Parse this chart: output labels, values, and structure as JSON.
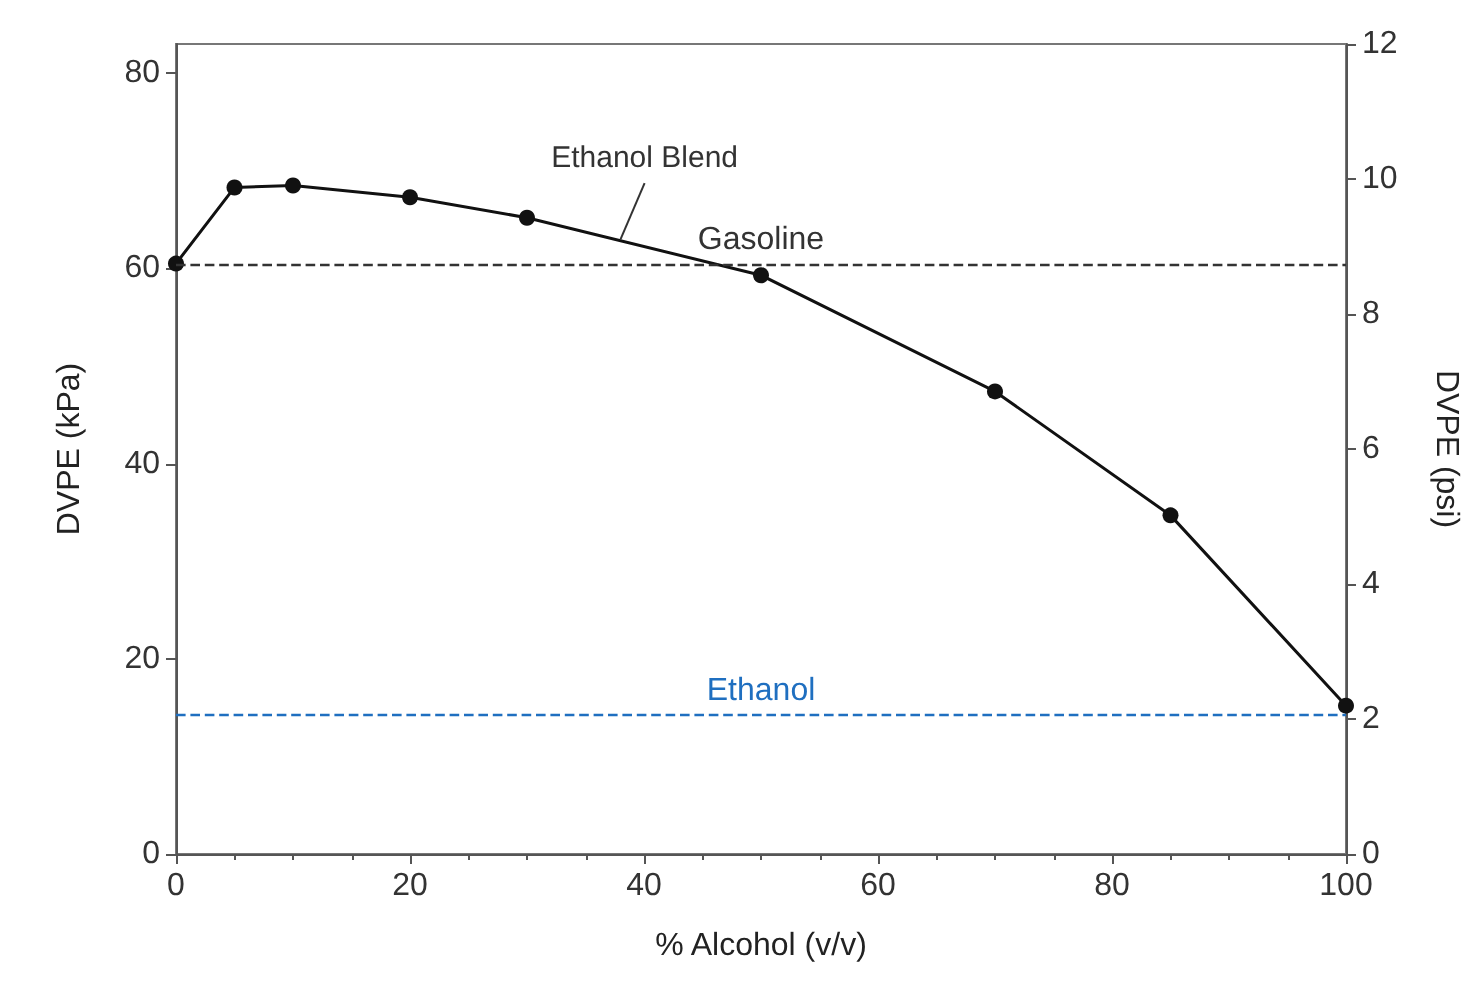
{
  "chart_data": {
    "type": "line",
    "xlabel": "% Alcohol (v/v)",
    "ylabel": "DVPE (kPa)",
    "y2label": "DVPE (psi)",
    "x": [
      0,
      5,
      10,
      20,
      30,
      50,
      70,
      85,
      100
    ],
    "series": [
      {
        "color": "#111111",
        "values": [
          60.5,
          68.3,
          68.5,
          67.3,
          65.2,
          59.3,
          47.4,
          34.7,
          15.2
        ]
      }
    ],
    "xlim": [
      0,
      100
    ],
    "xticks": [
      0,
      20,
      40,
      60,
      80,
      100
    ],
    "ylim": [
      0,
      83
    ],
    "yticks": [
      0,
      20,
      40,
      60,
      80
    ],
    "y2lim": [
      0,
      12
    ],
    "y2ticks": [
      0,
      2,
      4,
      6,
      8,
      10,
      12
    ],
    "ref_lines": [
      {
        "axis": "y",
        "value": 60.5,
        "label": "Gasoline",
        "color": "#333333",
        "line_style": "dashed"
      },
      {
        "axis": "y",
        "value": 14.2,
        "label": "Ethanol",
        "color": "#1f6fc0",
        "line_style": "dashed"
      }
    ],
    "annotations": [
      {
        "text": "Ethanol Blend",
        "x": 38,
        "y": 63
      }
    ],
    "marker": "circle",
    "line_style": "solid",
    "grid": false
  }
}
